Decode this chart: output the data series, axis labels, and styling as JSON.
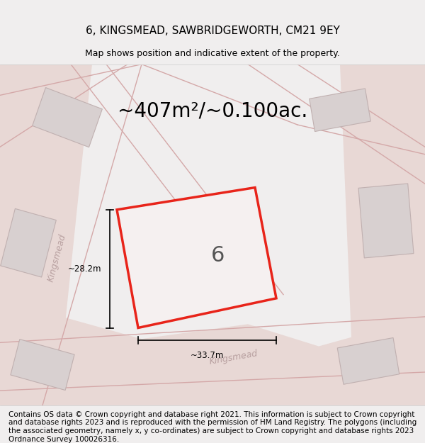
{
  "title": "6, KINGSMEAD, SAWBRIDGEWORTH, CM21 9EY",
  "subtitle": "Map shows position and indicative extent of the property.",
  "area_text": "~407m²/~0.100ac.",
  "label_number": "6",
  "dim_vertical": "~28.2m",
  "dim_horizontal": "~33.7m",
  "footer": "Contains OS data © Crown copyright and database right 2021. This information is subject to Crown copyright and database rights 2023 and is reproduced with the permission of HM Land Registry. The polygons (including the associated geometry, namely x, y co-ordinates) are subject to Crown copyright and database rights 2023 Ordnance Survey 100026316.",
  "bg_color": "#f0eeee",
  "map_bg": "#f5f3f3",
  "road_color": "#e8e0e0",
  "road_line_color": "#d4b8b8",
  "plot_fill": "#f5f0f0",
  "plot_edge": "#e8241a",
  "building_fill": "#d8d0d0",
  "building_edge": "#c0b0b0",
  "road_label_color": "#b8a0a0",
  "footer_bg": "#ffffff",
  "title_fontsize": 11,
  "subtitle_fontsize": 9,
  "area_fontsize": 20,
  "footer_fontsize": 7.5
}
